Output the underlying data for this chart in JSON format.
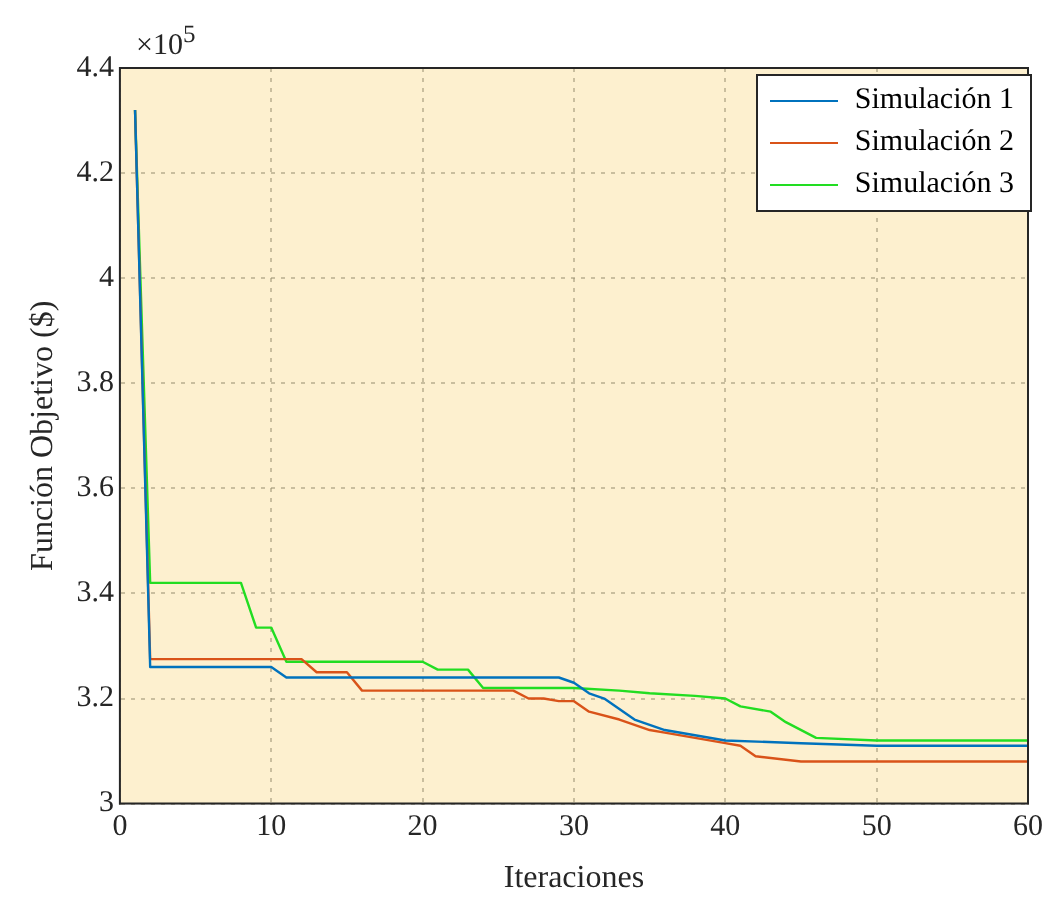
{
  "chart_data": {
    "type": "line",
    "xlabel": "Iteraciones",
    "ylabel": "Función Objetivo ($)",
    "annotations": [
      "×10$^{5}$"
    ],
    "xlim": [
      0,
      60
    ],
    "xticks": [
      0,
      10,
      20,
      30,
      40,
      50,
      60
    ],
    "ylim": [
      3,
      4.4
    ],
    "yticks": [
      3,
      3.2,
      3.4,
      3.6,
      3.8,
      4,
      4.2,
      4.4
    ],
    "grid": true,
    "legend": "top right",
    "marker": "none",
    "line_style": "solid",
    "series": [
      {
        "name": "Simulación 1",
        "color": "#0072bd",
        "x": [
          1,
          2,
          10,
          11,
          29,
          30,
          31,
          32,
          33,
          34,
          35,
          36,
          38,
          40,
          45,
          50,
          60
        ],
        "values": [
          4.32,
          3.26,
          3.26,
          3.24,
          3.24,
          3.23,
          3.21,
          3.2,
          3.18,
          3.16,
          3.15,
          3.14,
          3.13,
          3.12,
          3.115,
          3.11,
          3.11
        ]
      },
      {
        "name": "Simulación 2",
        "color": "#d95319",
        "x": [
          1,
          2,
          12,
          13,
          15,
          16,
          26,
          27,
          28,
          29,
          30,
          31,
          33,
          35,
          36,
          38,
          40,
          41,
          42,
          45,
          60
        ],
        "values": [
          4.32,
          3.275,
          3.275,
          3.25,
          3.25,
          3.215,
          3.215,
          3.2,
          3.2,
          3.195,
          3.195,
          3.175,
          3.16,
          3.14,
          3.135,
          3.125,
          3.115,
          3.11,
          3.09,
          3.08,
          3.08
        ]
      },
      {
        "name": "Simulación 3",
        "color": "#22dd22",
        "x": [
          1,
          2,
          8,
          9,
          10,
          11,
          20,
          21,
          23,
          24,
          30,
          33,
          35,
          38,
          40,
          41,
          43,
          44,
          46,
          50,
          60
        ],
        "values": [
          4.32,
          3.42,
          3.42,
          3.335,
          3.335,
          3.27,
          3.27,
          3.255,
          3.255,
          3.22,
          3.22,
          3.215,
          3.21,
          3.205,
          3.2,
          3.185,
          3.175,
          3.155,
          3.125,
          3.12,
          3.12
        ]
      }
    ]
  }
}
